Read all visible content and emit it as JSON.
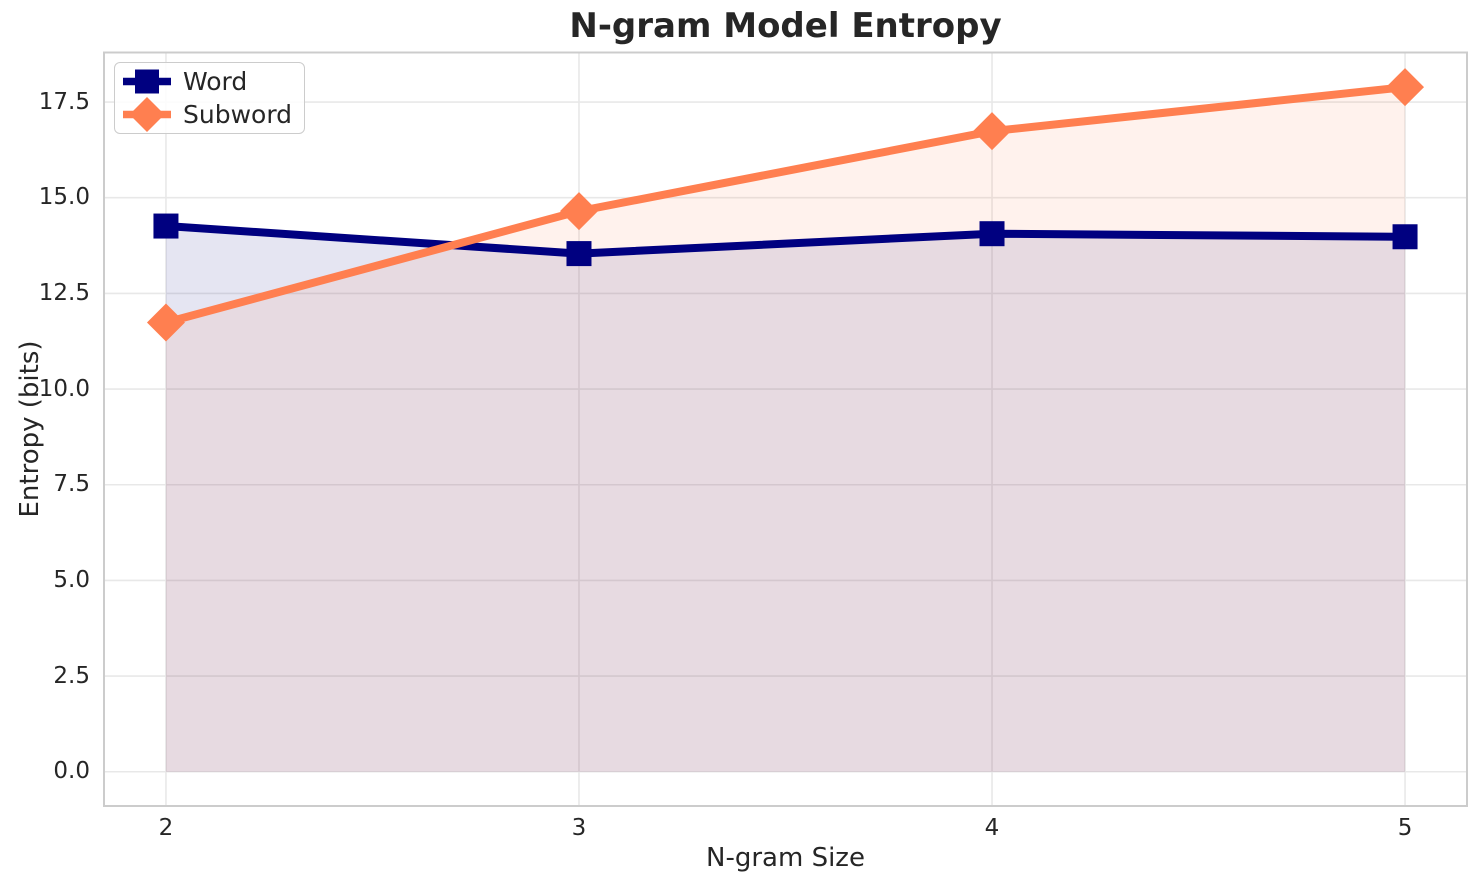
{
  "chart_data": {
    "type": "line",
    "title": "N-gram Model Entropy",
    "xlabel": "N-gram Size",
    "ylabel": "Entropy (bits)",
    "x": [
      2,
      3,
      4,
      5
    ],
    "series": [
      {
        "name": "Word",
        "color": "#000080",
        "marker": "square",
        "values": [
          14.26,
          13.54,
          14.06,
          13.98
        ]
      },
      {
        "name": "Subword",
        "color": "#FF7F50",
        "marker": "diamond",
        "values": [
          11.74,
          14.65,
          16.74,
          17.89
        ]
      }
    ],
    "fill_to_zero": true,
    "fill_alpha": 0.1,
    "xlim": [
      1.85,
      5.15
    ],
    "ylim": [
      -0.895,
      18.795
    ],
    "xticks": [
      "2",
      "3",
      "4",
      "5"
    ],
    "xtick_values": [
      2,
      3,
      4,
      5
    ],
    "yticks": [
      "0.0",
      "2.5",
      "5.0",
      "7.5",
      "10.0",
      "12.5",
      "15.0",
      "17.5"
    ],
    "ytick_values": [
      0,
      2.5,
      5,
      7.5,
      10,
      12.5,
      15,
      17.5
    ],
    "grid": true,
    "grid_color": "#e8e8e8",
    "spine_color": "#cccccc",
    "legend": {
      "position": "upper-left",
      "items": [
        "Word",
        "Subword"
      ]
    }
  }
}
